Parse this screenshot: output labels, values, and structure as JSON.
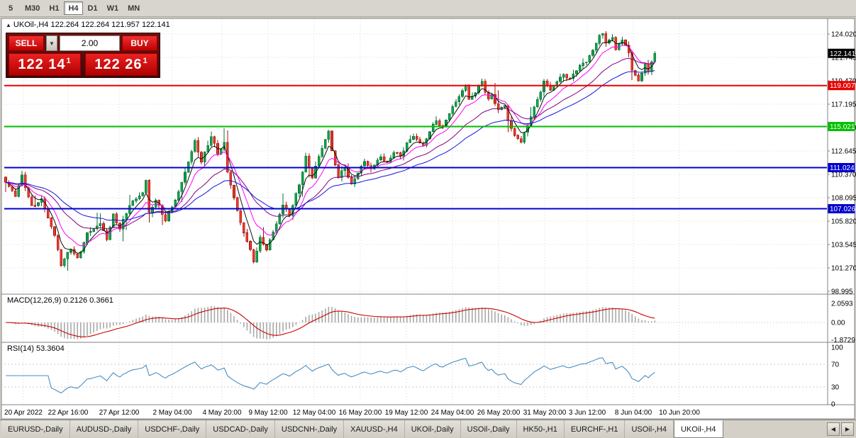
{
  "toolbar": {
    "timeframes": [
      "5",
      "M30",
      "H1",
      "H4",
      "D1",
      "W1",
      "MN"
    ],
    "active": "H4"
  },
  "chart": {
    "symbol": "UKOil-,H4",
    "ohlc_line": "UKOil-,H4 122.264 122.264 121.957 122.141",
    "open": "122.264",
    "high": "122.264",
    "low": "121.957",
    "close": "122.141"
  },
  "icons": {
    "collapse": "▲",
    "dropdown": "▼",
    "scroll_left": "◀",
    "scroll_right": "▶"
  },
  "one_click": {
    "sell_label": "SELL",
    "buy_label": "BUY",
    "volume": "2.00",
    "bid_main": "122 14",
    "bid_sup": "1",
    "ask_main": "122 26",
    "ask_sup": "1"
  },
  "price_axis": {
    "labels": [
      "124.020",
      "121.745",
      "119.470",
      "117.195",
      "114.920",
      "112.645",
      "110.370",
      "108.095",
      "105.820",
      "103.545",
      "101.270",
      "98.995"
    ],
    "current_badge": {
      "text": "122.141",
      "bg": "#000000"
    },
    "level_badges": [
      {
        "text": "119.007",
        "price": 119.007,
        "color": "#e80000"
      },
      {
        "text": "115.021",
        "price": 115.021,
        "color": "#00c000"
      },
      {
        "text": "111.024",
        "price": 111.024,
        "color": "#0000cc"
      },
      {
        "text": "107.026",
        "price": 107.026,
        "color": "#0000cc"
      }
    ]
  },
  "time_axis": {
    "labels": [
      "20 Apr 2022",
      "22 Apr 16:00",
      "27 Apr 12:00",
      "2 May 04:00",
      "4 May 20:00",
      "9 May 12:00",
      "12 May 04:00",
      "16 May 20:00",
      "19 May 12:00",
      "24 May 04:00",
      "26 May 20:00",
      "31 May 20:00",
      "3 Jun 12:00",
      "8 Jun 04:00",
      "10 Jun 20:00"
    ]
  },
  "indicators": {
    "macd": {
      "label": "MACD(12,26,9) 0.2126 0.3661",
      "axis_labels": [
        "2.0593",
        "0.00",
        "-1.8729"
      ],
      "value": "0.2126",
      "signal": "0.3661"
    },
    "rsi": {
      "label": "RSI(14) 53.3604",
      "axis_labels": [
        "100",
        "70",
        "30",
        "0"
      ],
      "levels": [
        70,
        30
      ],
      "value": "53.3604"
    }
  },
  "tabs": {
    "items": [
      "EURUSD-,Daily",
      "AUDUSD-,Daily",
      "USDCHF-,Daily",
      "USDCAD-,Daily",
      "USDCNH-,Daily",
      "XAUUSD-,H4",
      "UKOil-,Daily",
      "USOil-,Daily",
      "HK50-,H1",
      "EURCHF-,H1",
      "USOil-,H4",
      "UKOil-,H4"
    ],
    "active": "UKOil-,H4"
  },
  "colors": {
    "candle_up": "#11a04a",
    "candle_up_border": "#0a6e33",
    "candle_down": "#e8392c",
    "candle_down_border": "#9c1408",
    "ma_fast": "#101010",
    "ma_mid": "#ff00ff",
    "ma_slow": "#800080",
    "ma_trend": "#1414e0",
    "macd_hist": "#a8a8a8",
    "macd_signal": "#cc0000",
    "rsi_line": "#4a8ec2",
    "grid": "#d8d8d8",
    "hline_red": "#e80000",
    "hline_green": "#00c000",
    "hline_blue": "#0000cc"
  },
  "chart_data": {
    "type": "candlestick",
    "title": "UKOil-,H4",
    "symbol": "UKOil-",
    "timeframe": "H4",
    "x_labels": [
      "20 Apr 2022",
      "22 Apr 16:00",
      "27 Apr 12:00",
      "2 May 04:00",
      "4 May 20:00",
      "9 May 12:00",
      "12 May 04:00",
      "16 May 20:00",
      "19 May 12:00",
      "24 May 04:00",
      "26 May 20:00",
      "31 May 20:00",
      "3 Jun 12:00",
      "8 Jun 04:00",
      "10 Jun 20:00"
    ],
    "y_range": [
      98.995,
      125.45
    ],
    "y_tick_step": 2.275,
    "n_candles": 200,
    "current_ohlc": {
      "open": 122.264,
      "high": 122.264,
      "low": 121.957,
      "close": 122.141
    },
    "hlines": [
      119.007,
      115.021,
      111.024,
      107.026
    ],
    "close_anchors": [
      [
        0,
        109.6
      ],
      [
        3,
        108.3
      ],
      [
        5,
        110.2
      ],
      [
        8,
        107.2
      ],
      [
        11,
        107.9
      ],
      [
        15,
        104.4
      ],
      [
        17,
        101.6
      ],
      [
        20,
        103.2
      ],
      [
        22,
        102.1
      ],
      [
        25,
        104.6
      ],
      [
        29,
        105.6
      ],
      [
        31,
        104.1
      ],
      [
        33,
        106.4
      ],
      [
        35,
        105.1
      ],
      [
        38,
        107.4
      ],
      [
        42,
        108.6
      ],
      [
        43,
        109.8
      ],
      [
        44,
        106.6
      ],
      [
        46,
        107.9
      ],
      [
        49,
        105.9
      ],
      [
        53,
        108.6
      ],
      [
        55,
        110.6
      ],
      [
        58,
        113.6
      ],
      [
        60,
        111.6
      ],
      [
        63,
        114.1
      ],
      [
        65,
        112.4
      ],
      [
        67,
        113.4
      ],
      [
        68,
        110.6
      ],
      [
        70,
        108.1
      ],
      [
        72,
        105.6
      ],
      [
        74,
        103.9
      ],
      [
        76,
        101.9
      ],
      [
        78,
        104.1
      ],
      [
        80,
        103.1
      ],
      [
        83,
        105.6
      ],
      [
        85,
        107.4
      ],
      [
        87,
        106.4
      ],
      [
        90,
        109.4
      ],
      [
        92,
        112.0
      ],
      [
        94,
        110.1
      ],
      [
        96,
        112.1
      ],
      [
        99,
        114.6
      ],
      [
        100,
        112.6
      ],
      [
        102,
        110.1
      ],
      [
        104,
        111.1
      ],
      [
        106,
        109.3
      ],
      [
        108,
        110.6
      ],
      [
        110,
        111.6
      ],
      [
        112,
        110.9
      ],
      [
        115,
        112.1
      ],
      [
        117,
        111.4
      ],
      [
        119,
        112.6
      ],
      [
        121,
        112.1
      ],
      [
        123,
        113.4
      ],
      [
        125,
        114.1
      ],
      [
        128,
        113.1
      ],
      [
        130,
        114.6
      ],
      [
        132,
        115.6
      ],
      [
        134,
        114.9
      ],
      [
        136,
        116.4
      ],
      [
        138,
        117.4
      ],
      [
        141,
        119.1
      ],
      [
        142,
        117.6
      ],
      [
        144,
        118.4
      ],
      [
        146,
        119.4
      ],
      [
        148,
        117.6
      ],
      [
        149,
        118.1
      ],
      [
        151,
        116.6
      ],
      [
        153,
        117.1
      ],
      [
        154,
        115.6
      ],
      [
        156,
        114.1
      ],
      [
        158,
        113.6
      ],
      [
        160,
        115.1
      ],
      [
        161,
        116.1
      ],
      [
        163,
        117.6
      ],
      [
        165,
        119.4
      ],
      [
        167,
        118.6
      ],
      [
        169,
        119.4
      ],
      [
        171,
        120.1
      ],
      [
        173,
        119.6
      ],
      [
        175,
        120.6
      ],
      [
        178,
        121.4
      ],
      [
        180,
        122.4
      ],
      [
        182,
        123.9
      ],
      [
        183,
        124.1
      ],
      [
        184,
        123.1
      ],
      [
        186,
        123.8
      ],
      [
        187,
        122.4
      ],
      [
        189,
        123.6
      ],
      [
        191,
        122.1
      ],
      [
        192,
        120.6
      ],
      [
        194,
        119.4
      ],
      [
        196,
        121.1
      ],
      [
        197,
        120.4
      ],
      [
        199,
        122.141
      ]
    ],
    "indicators": {
      "macd": {
        "fast": 12,
        "slow": 26,
        "signal_period": 9,
        "last_value": 0.2126,
        "last_signal": 0.3661,
        "axis": [
          2.0593,
          0.0,
          -1.8729
        ]
      },
      "rsi": {
        "period": 14,
        "last_value": 53.3604,
        "levels": [
          70,
          30
        ],
        "axis": [
          100,
          70,
          30,
          0
        ]
      }
    }
  }
}
